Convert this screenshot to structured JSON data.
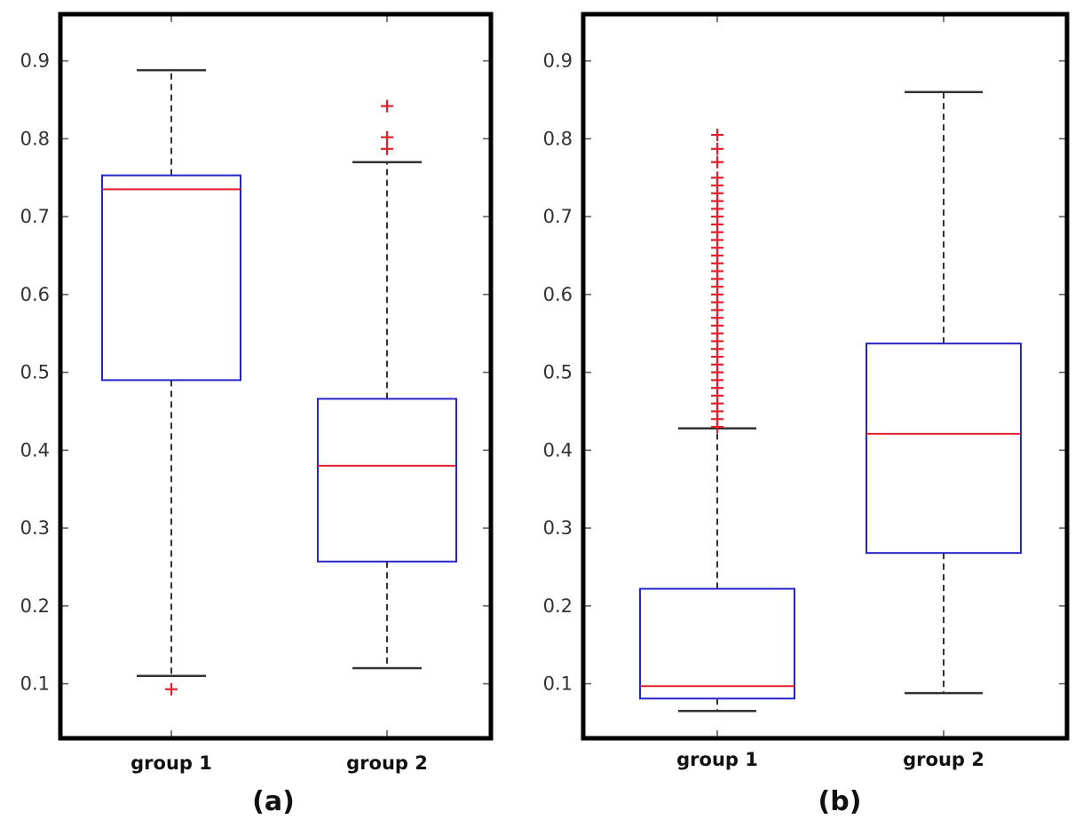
{
  "colors": {
    "box": "#2626c8",
    "median": "#e0202a",
    "outlier": "#e0202a",
    "whisker": "#333333",
    "frame": "#000000",
    "text": "#333333"
  },
  "chart_data": [
    {
      "type": "box",
      "panel_label": "(a)",
      "categories": [
        "group 1",
        "group 2"
      ],
      "yticks": [
        "0.1",
        "0.2",
        "0.3",
        "0.4",
        "0.5",
        "0.6",
        "0.7",
        "0.8",
        "0.9"
      ],
      "ylim": [
        0.03,
        0.96
      ],
      "boxes": [
        {
          "name": "group 1",
          "whisker_low": 0.11,
          "q1": 0.49,
          "median": 0.735,
          "q3": 0.753,
          "whisker_high": 0.888,
          "outliers": [
            0.093
          ]
        },
        {
          "name": "group 2",
          "whisker_low": 0.12,
          "q1": 0.257,
          "median": 0.38,
          "q3": 0.466,
          "whisker_high": 0.77,
          "outliers": [
            0.787,
            0.802,
            0.842
          ]
        }
      ]
    },
    {
      "type": "box",
      "panel_label": "(b)",
      "categories": [
        "group 1",
        "group 2"
      ],
      "yticks": [
        "0.1",
        "0.2",
        "0.3",
        "0.4",
        "0.5",
        "0.6",
        "0.7",
        "0.8",
        "0.9"
      ],
      "ylim": [
        0.03,
        0.96
      ],
      "boxes": [
        {
          "name": "group 1",
          "whisker_low": 0.065,
          "q1": 0.081,
          "median": 0.097,
          "q3": 0.222,
          "whisker_high": 0.428,
          "outliers": [
            0.43,
            0.44,
            0.45,
            0.46,
            0.47,
            0.48,
            0.49,
            0.5,
            0.51,
            0.52,
            0.53,
            0.54,
            0.55,
            0.56,
            0.57,
            0.58,
            0.59,
            0.6,
            0.61,
            0.62,
            0.63,
            0.64,
            0.65,
            0.66,
            0.67,
            0.68,
            0.69,
            0.7,
            0.71,
            0.72,
            0.73,
            0.74,
            0.75,
            0.77,
            0.787,
            0.805
          ]
        },
        {
          "name": "group 2",
          "whisker_low": 0.088,
          "q1": 0.268,
          "median": 0.421,
          "q3": 0.537,
          "whisker_high": 0.86,
          "outliers": []
        }
      ]
    }
  ]
}
